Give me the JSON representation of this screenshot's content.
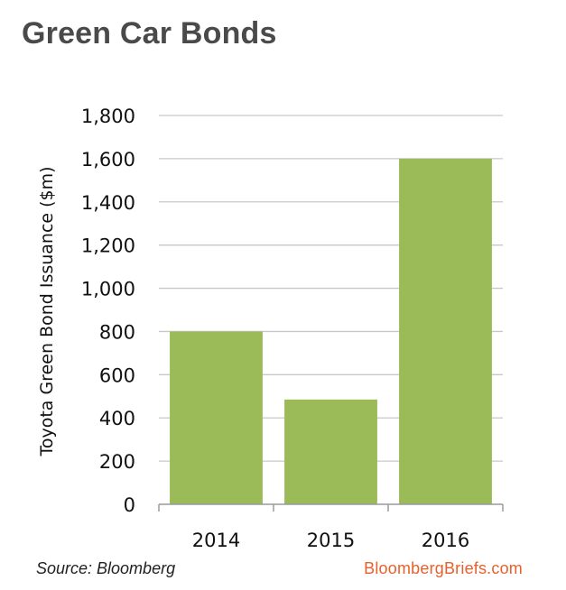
{
  "header": {
    "title": "Green Car Bonds"
  },
  "footer": {
    "source": "Source: Bloomberg",
    "brand": "BloombergBriefs.com"
  },
  "colors": {
    "bar": "#9bbb59",
    "grid": "#c8c8c8",
    "axis": "#9a9a9a"
  },
  "chart_data": {
    "type": "bar",
    "categories": [
      "2014",
      "2015",
      "2016"
    ],
    "values": [
      800,
      485,
      1600
    ],
    "ylabel": "Toyota Green Bond Issuance ($m)",
    "xlabel": "",
    "ylim": [
      0,
      1800
    ],
    "yticks": [
      0,
      200,
      400,
      600,
      800,
      1000,
      1200,
      1400,
      1600,
      1800
    ],
    "ytick_labels": [
      "0",
      "200",
      "400",
      "600",
      "800",
      "1,000",
      "1,200",
      "1,400",
      "1,600",
      "1,800"
    ],
    "grid": true,
    "legend": "none"
  }
}
